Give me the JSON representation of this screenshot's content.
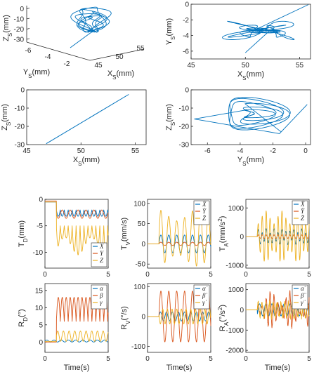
{
  "colors": {
    "blue": "#0072bd",
    "red": "#d95319",
    "yellow": "#edb120",
    "axis": "#262626"
  },
  "chart_data": [
    {
      "id": "p3d",
      "type": "line",
      "xlabel": "X_S(mm)",
      "ylabel": "Y_S(mm)",
      "zlabel": "Z_S(mm)",
      "xticks": [
        "45",
        "50",
        "55"
      ],
      "yticks": [
        "-6",
        "-4",
        "-2"
      ],
      "zticks": [
        "-30",
        "-20",
        "-10",
        "0"
      ],
      "series": [
        {
          "color": "#0072bd"
        }
      ]
    },
    {
      "id": "pxy",
      "type": "line",
      "xlabel": "X_S(mm)",
      "ylabel": "Y_S(mm)",
      "xlim": [
        45,
        56
      ],
      "ylim": [
        -7,
        0
      ],
      "xticks": [
        45,
        50,
        55
      ],
      "yticks": [
        -6,
        -4,
        -2,
        0
      ],
      "series": [
        {
          "color": "#0072bd"
        }
      ]
    },
    {
      "id": "pxz",
      "type": "line",
      "xlabel": "X_S(mm)",
      "ylabel": "Z_S(mm)",
      "xlim": [
        45,
        56
      ],
      "ylim": [
        -30,
        0
      ],
      "xticks": [
        45,
        50,
        55
      ],
      "yticks": [
        -30,
        -20,
        -10,
        0
      ],
      "series": [
        {
          "color": "#0072bd",
          "x": [
            46.8,
            54.4
          ],
          "y": [
            -29.5,
            -2.5
          ]
        }
      ]
    },
    {
      "id": "pyz",
      "type": "line",
      "xlabel": "Y_S(mm)",
      "ylabel": "Z_S(mm)",
      "xlim": [
        -7,
        0.3
      ],
      "ylim": [
        -30,
        0
      ],
      "xticks": [
        -6,
        -4,
        -2,
        0
      ],
      "yticks": [
        -30,
        -20,
        -10,
        0
      ],
      "series": [
        {
          "color": "#0072bd"
        }
      ]
    },
    {
      "id": "td",
      "type": "line",
      "xlabel": "",
      "ylabel": "T_D(mm)",
      "xlim": [
        0,
        5
      ],
      "ylim": [
        -13,
        0
      ],
      "xticks": [
        0,
        5
      ],
      "yticks": [
        -10,
        -5,
        0
      ],
      "legend": [
        "X",
        "Y",
        "Z"
      ],
      "legend_position": "bottom-right",
      "series": [
        {
          "name": "X",
          "color": "#0072bd"
        },
        {
          "name": "Y",
          "color": "#d95319"
        },
        {
          "name": "Z",
          "color": "#edb120"
        }
      ]
    },
    {
      "id": "tv",
      "type": "line",
      "xlabel": "",
      "ylabel": "T_V(mm/s)",
      "xlim": [
        0,
        5
      ],
      "ylim": [
        -60,
        110
      ],
      "xticks": [
        0,
        5
      ],
      "yticks": [
        -50,
        0,
        50,
        100
      ],
      "legend": [
        "Ẋ",
        "Ẏ",
        "Ż"
      ],
      "legend_position": "top-right",
      "series": [
        {
          "name": "Ẋ",
          "color": "#0072bd"
        },
        {
          "name": "Ẏ",
          "color": "#d95319"
        },
        {
          "name": "Ż",
          "color": "#edb120"
        }
      ]
    },
    {
      "id": "ta",
      "type": "line",
      "xlabel": "",
      "ylabel": "T_A(mm/s^2)",
      "xlim": [
        0,
        5
      ],
      "ylim": [
        -1100,
        1300
      ],
      "xticks": [
        0,
        5
      ],
      "yticks": [
        -1000,
        0,
        1000
      ],
      "legend": [
        "Ẍ",
        "Ÿ",
        "Z̈"
      ],
      "legend_position": "top-right",
      "series": [
        {
          "name": "Ẍ",
          "color": "#0072bd"
        },
        {
          "name": "Ÿ",
          "color": "#d95319"
        },
        {
          "name": "Z̈",
          "color": "#edb120"
        }
      ]
    },
    {
      "id": "rd",
      "type": "line",
      "xlabel": "Time(s)",
      "ylabel": "R_D(°)",
      "xlim": [
        0,
        5
      ],
      "ylim": [
        -3,
        17
      ],
      "xticks": [
        0,
        5
      ],
      "yticks": [
        0,
        5,
        10,
        15
      ],
      "legend": [
        "α",
        "β",
        "γ"
      ],
      "legend_position": "top-right",
      "series": [
        {
          "name": "α",
          "color": "#0072bd"
        },
        {
          "name": "β",
          "color": "#d95319"
        },
        {
          "name": "γ",
          "color": "#edb120"
        }
      ]
    },
    {
      "id": "rv",
      "type": "line",
      "xlabel": "Time(s)",
      "ylabel": "R_V(°/s)",
      "xlim": [
        0,
        5
      ],
      "ylim": [
        -120,
        110
      ],
      "xticks": [
        0,
        5
      ],
      "yticks": [
        -100,
        0,
        100
      ],
      "legend": [
        "α̇",
        "β̇",
        "γ̇"
      ],
      "legend_position": "top-right",
      "series": [
        {
          "name": "α̇",
          "color": "#0072bd"
        },
        {
          "name": "β̇",
          "color": "#d95319"
        },
        {
          "name": "γ̇",
          "color": "#edb120"
        }
      ]
    },
    {
      "id": "ra",
      "type": "line",
      "xlabel": "Time(s)",
      "ylabel": "R_A(°/s^2)",
      "xlim": [
        0,
        5
      ],
      "ylim": [
        -2100,
        1300
      ],
      "xticks": [
        0,
        5
      ],
      "yticks": [
        -2000,
        -1000,
        0,
        1000
      ],
      "legend": [
        "α̈",
        "β̈",
        "γ̈"
      ],
      "legend_position": "top-right",
      "series": [
        {
          "name": "α̈",
          "color": "#0072bd"
        },
        {
          "name": "β̈",
          "color": "#d95319"
        },
        {
          "name": "γ̈",
          "color": "#edb120"
        }
      ]
    }
  ]
}
